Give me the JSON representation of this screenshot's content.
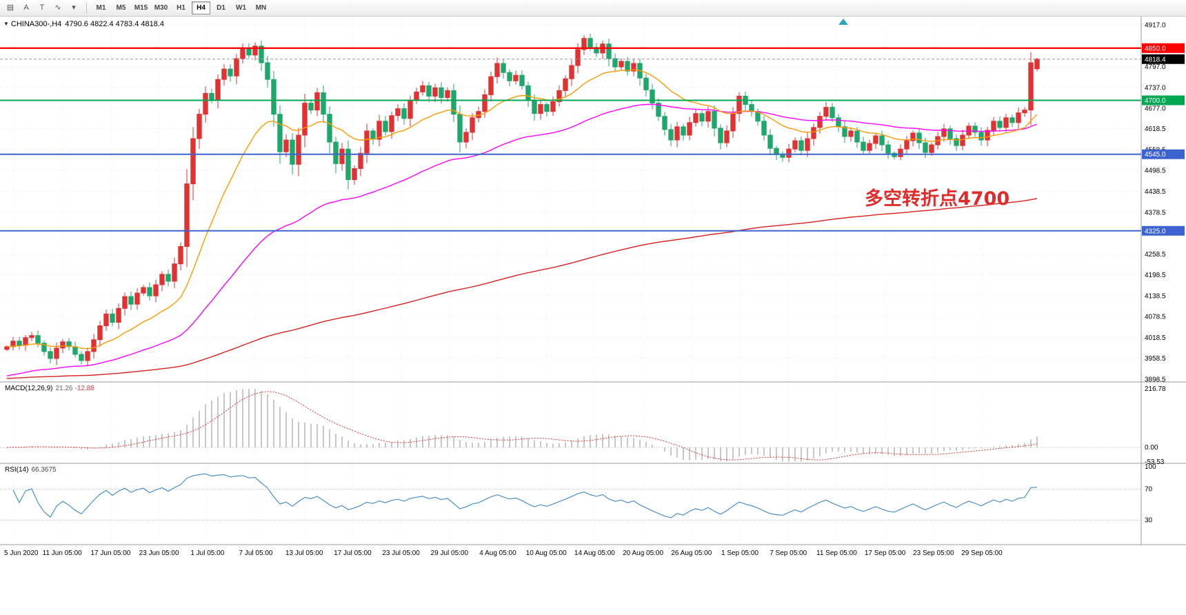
{
  "toolbar": {
    "icons": [
      {
        "name": "chart-window-icon",
        "glyph": "▤"
      },
      {
        "name": "cursor-a-icon",
        "glyph": "A"
      },
      {
        "name": "text-tool-icon",
        "glyph": "T"
      },
      {
        "name": "indicators-icon",
        "glyph": "∿"
      },
      {
        "name": "indicators-dropdown-icon",
        "glyph": "▾"
      }
    ],
    "timeframes": [
      "M1",
      "M5",
      "M15",
      "M30",
      "H1",
      "H4",
      "D1",
      "W1",
      "MN"
    ],
    "active_timeframe": "H4"
  },
  "chart": {
    "header": {
      "marker": "▼",
      "symbol": "CHINA300-,H4",
      "ohlc": "4790.6 4822.4 4783.4 4818.4"
    },
    "annotation": {
      "text": "多空转折点4700",
      "color": "#e02b2b"
    },
    "price_axis": {
      "labels": [
        "4917.0",
        "4797.0",
        "4737.0",
        "4677.0",
        "4618.5",
        "4558.5",
        "4498.5",
        "4438.5",
        "4378.5",
        "4318.5",
        "4258.5",
        "4198.5",
        "4138.5",
        "4078.5",
        "4018.5",
        "3958.5",
        "3898.5"
      ]
    },
    "hlines": [
      {
        "price": 4850.0,
        "label": "4850.0",
        "color": "#ff0000",
        "badge": "#ff0000",
        "width": 2.4
      },
      {
        "price": 4700.0,
        "label": "4700.0",
        "color": "#00a651",
        "badge": "#00a651",
        "width": 2.0
      },
      {
        "price": 4545.0,
        "label": "4545.0",
        "color": "#3d63d0",
        "badge": "#3d63d0",
        "width": 2.0
      },
      {
        "price": 4325.0,
        "label": "4325.0",
        "color": "#3d63d0",
        "badge": "#3d63d0",
        "width": 2.0
      }
    ],
    "bid": {
      "price": 4818.4,
      "label": "4818.4",
      "badge": "#000000"
    },
    "candles": {
      "up_color": "#e03232",
      "down_color": "#1fa76b"
    },
    "mas": [
      {
        "name": "ma-slow-line",
        "color": "#d81e1e",
        "alpha": 0.008,
        "seed": 3900
      },
      {
        "name": "ma-mid-line",
        "color": "#ff00ff",
        "alpha": 0.035,
        "seed": 3905
      },
      {
        "name": "ma-fast-line",
        "color": "#ff9a00",
        "alpha": 0.105,
        "seed": null
      }
    ],
    "marker_color": "#28a5bb"
  },
  "macd": {
    "name": "MACD(12,26,9)",
    "value_main": "21.26",
    "value_signal": "-12.88",
    "axis_labels": [
      "216.78",
      "0.00",
      "-53.53"
    ],
    "axis_max": 216.78,
    "axis_min": -53.53,
    "histogram_color": "#b4b4b4",
    "signal_color": "#e03030",
    "params": {
      "fast": 12,
      "slow": 26,
      "signal": 9
    }
  },
  "rsi": {
    "name": "RSI(14)",
    "value": "66.3675",
    "period": 14,
    "axis_labels": [
      "100",
      "70",
      "30"
    ],
    "levels": [
      70,
      30
    ],
    "line_color": "#4a8fc4"
  },
  "timeline": {
    "labels": [
      "5 Jun 2020",
      "11 Jun 05:00",
      "17 Jun 05:00",
      "23 Jun 05:00",
      "1 Jul 05:00",
      "7 Jul 05:00",
      "13 Jul 05:00",
      "17 Jul 05:00",
      "23 Jul 05:00",
      "29 Jul 05:00",
      "4 Aug 05:00",
      "10 Aug 05:00",
      "14 Aug 05:00",
      "20 Aug 05:00",
      "26 Aug 05:00",
      "1 Sep 05:00",
      "7 Sep 05:00",
      "11 Sep 05:00",
      "17 Sep 05:00",
      "23 Sep 05:00",
      "29 Sep 05:00"
    ]
  },
  "chart_data": {
    "type": "candlestick",
    "title": "CHINA300- H4",
    "symbol": "CHINA300-",
    "timeframe": "H4",
    "x_unit": "H4 bars, 5 Jun 2020 - 30 Sep 2020",
    "y_range": [
      3898.5,
      4917.0
    ],
    "key_levels": [
      4850.0,
      4700.0,
      4545.0,
      4325.0
    ],
    "current_price": 4818.4,
    "last_ohlc": [
      4790.6,
      4822.4,
      4783.4,
      4818.4
    ],
    "closes": [
      3992,
      4008,
      3996,
      4018,
      4024,
      4002,
      3978,
      3958,
      3988,
      4006,
      3992,
      3970,
      3952,
      3978,
      4012,
      4052,
      4086,
      4062,
      4102,
      4136,
      4114,
      4146,
      4162,
      4138,
      4170,
      4200,
      4180,
      4230,
      4280,
      4460,
      4590,
      4660,
      4720,
      4700,
      4760,
      4790,
      4770,
      4820,
      4850,
      4830,
      4856,
      4808,
      4760,
      4660,
      4552,
      4586,
      4516,
      4600,
      4692,
      4672,
      4722,
      4660,
      4580,
      4518,
      4560,
      4472,
      4504,
      4548,
      4612,
      4588,
      4640,
      4610,
      4656,
      4676,
      4648,
      4700,
      4724,
      4742,
      4712,
      4736,
      4708,
      4728,
      4660,
      4580,
      4608,
      4650,
      4668,
      4716,
      4768,
      4806,
      4780,
      4756,
      4772,
      4742,
      4700,
      4662,
      4688,
      4668,
      4696,
      4728,
      4762,
      4800,
      4846,
      4878,
      4852,
      4836,
      4862,
      4820,
      4796,
      4812,
      4784,
      4806,
      4764,
      4730,
      4692,
      4654,
      4616,
      4586,
      4624,
      4600,
      4636,
      4662,
      4640,
      4668,
      4620,
      4578,
      4612,
      4662,
      4712,
      4688,
      4668,
      4640,
      4600,
      4562,
      4544,
      4536,
      4560,
      4584,
      4556,
      4590,
      4622,
      4654,
      4680,
      4650,
      4624,
      4596,
      4612,
      4580,
      4556,
      4576,
      4598,
      4572,
      4548,
      4538,
      4560,
      4584,
      4606,
      4578,
      4550,
      4572,
      4596,
      4618,
      4590,
      4570,
      4600,
      4626,
      4608,
      4586,
      4614,
      4640,
      4622,
      4650,
      4636,
      4664,
      4672,
      4808,
      4818.4
    ]
  }
}
